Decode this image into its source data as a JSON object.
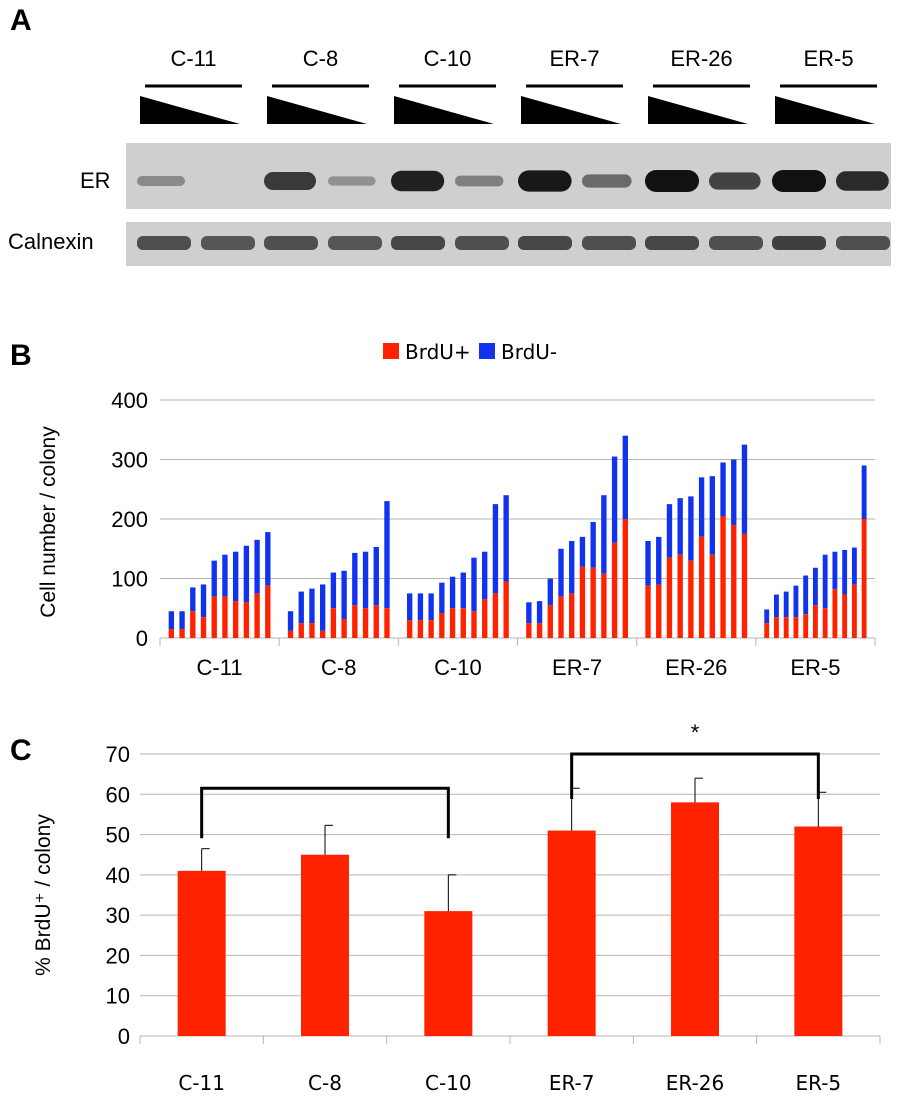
{
  "panels": {
    "a": "A",
    "b": "B",
    "c": "C"
  },
  "blot": {
    "lanes": [
      "C-11",
      "C-8",
      "C-10",
      "ER-7",
      "ER-26",
      "ER-5"
    ],
    "rows": [
      "ER",
      "Calnexin"
    ],
    "er_band_intensity": [
      [
        0.25,
        0.0
      ],
      [
        0.75,
        0.2
      ],
      [
        0.9,
        0.3
      ],
      [
        0.95,
        0.45
      ],
      [
        1.0,
        0.7
      ],
      [
        1.0,
        0.85
      ]
    ],
    "calnexin_band_intensity": [
      [
        0.85,
        0.8
      ],
      [
        0.85,
        0.8
      ],
      [
        0.9,
        0.85
      ],
      [
        0.9,
        0.85
      ],
      [
        0.9,
        0.85
      ],
      [
        0.95,
        0.85
      ]
    ],
    "colors": {
      "membrane": "#cfcfcf",
      "band": "#111111"
    }
  },
  "chart_data": [
    {
      "type": "bar",
      "stacked": true,
      "categories": [
        "C-11",
        "C-8",
        "C-10",
        "ER-7",
        "ER-26",
        "ER-5"
      ],
      "ylabel": "Cell number / colony",
      "ylim": [
        0,
        400
      ],
      "yticks": [
        0,
        100,
        200,
        300,
        400
      ],
      "grid": true,
      "legend_position": "top",
      "series": [
        {
          "name": "BrdU+",
          "color": "#ff2200"
        },
        {
          "name": "BrdU-",
          "color": "#1133ee"
        }
      ],
      "groups": [
        {
          "category": "C-11",
          "brdu_pos": [
            15,
            15,
            45,
            35,
            70,
            70,
            62,
            60,
            75,
            88
          ],
          "total": [
            45,
            45,
            85,
            90,
            130,
            140,
            145,
            155,
            165,
            178
          ]
        },
        {
          "category": "C-8",
          "brdu_pos": [
            12,
            25,
            25,
            12,
            50,
            32,
            55,
            50,
            55,
            50
          ],
          "total": [
            45,
            78,
            83,
            90,
            110,
            113,
            143,
            145,
            153,
            230
          ]
        },
        {
          "category": "C-10",
          "brdu_pos": [
            30,
            30,
            30,
            42,
            50,
            50,
            45,
            65,
            75,
            95
          ],
          "total": [
            75,
            75,
            75,
            93,
            103,
            110,
            135,
            145,
            225,
            240
          ]
        },
        {
          "category": "ER-7",
          "brdu_pos": [
            25,
            25,
            55,
            70,
            75,
            120,
            118,
            108,
            160,
            200
          ],
          "total": [
            60,
            62,
            100,
            150,
            163,
            170,
            195,
            240,
            305,
            340
          ]
        },
        {
          "category": "ER-26",
          "brdu_pos": [
            88,
            90,
            135,
            140,
            130,
            170,
            140,
            205,
            190,
            175
          ],
          "total": [
            163,
            170,
            225,
            235,
            238,
            270,
            272,
            295,
            300,
            325
          ]
        },
        {
          "category": "ER-5",
          "brdu_pos": [
            25,
            35,
            35,
            35,
            40,
            55,
            50,
            82,
            73,
            90,
            200
          ],
          "total": [
            48,
            73,
            78,
            88,
            105,
            118,
            140,
            145,
            148,
            152,
            290
          ]
        }
      ]
    },
    {
      "type": "bar",
      "categories": [
        "C-11",
        "C-8",
        "C-10",
        "ER-7",
        "ER-26",
        "ER-5"
      ],
      "values": [
        41,
        45,
        31,
        51,
        58,
        52
      ],
      "errors": [
        5.5,
        7.3,
        9.0,
        10.5,
        6.0,
        8.5
      ],
      "ylabel": "% BrdU⁺ / colony",
      "ylim": [
        0,
        70
      ],
      "yticks": [
        0,
        10,
        20,
        30,
        40,
        50,
        60,
        70
      ],
      "grid": true,
      "color": "#ff2200",
      "bracket_groups": [
        [
          "C-11",
          "C-10"
        ],
        [
          "ER-7",
          "ER-5"
        ]
      ],
      "annotation": "*"
    }
  ]
}
